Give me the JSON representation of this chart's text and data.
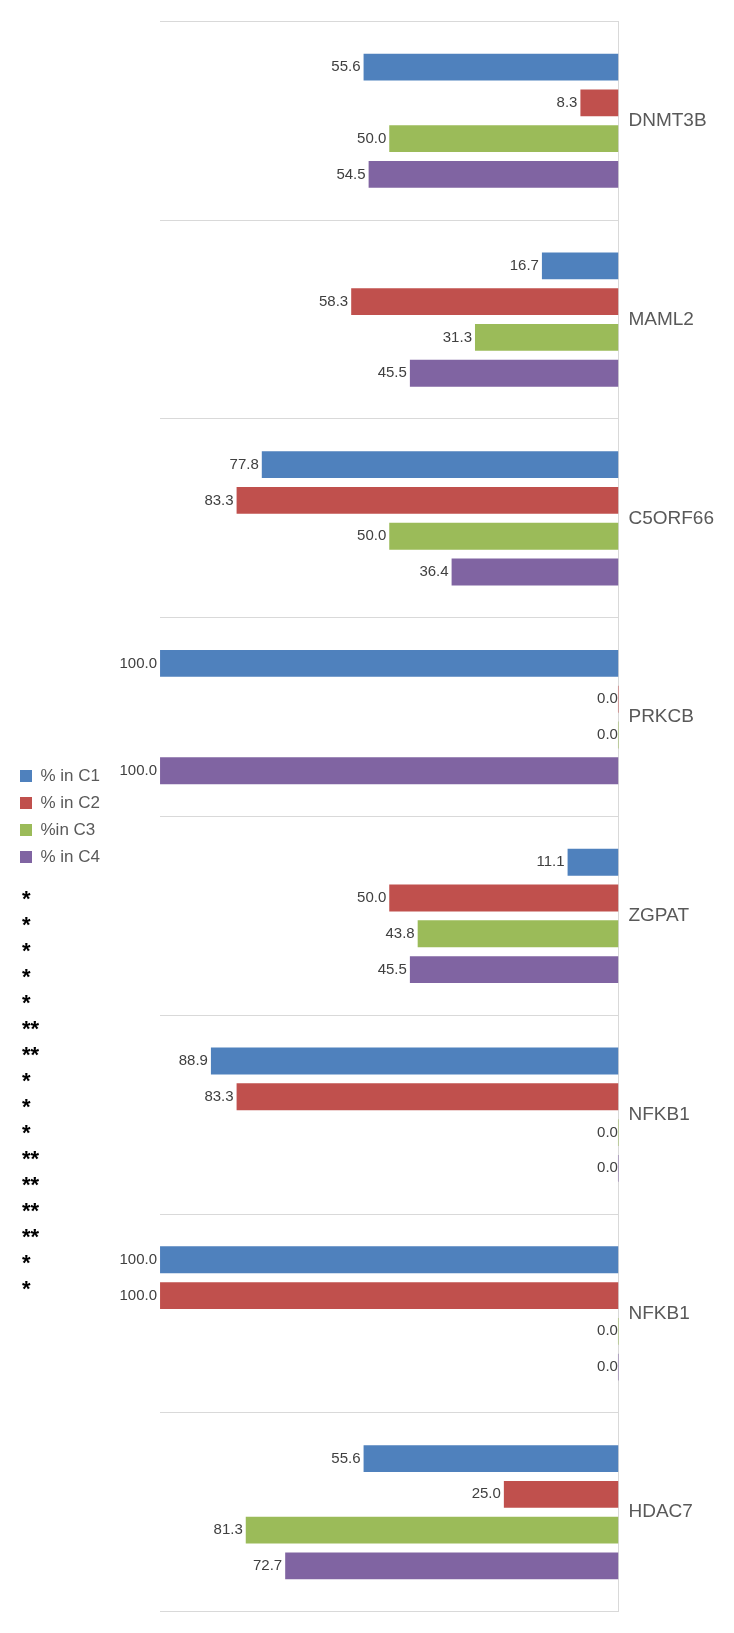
{
  "chart_data": {
    "type": "bar",
    "orientation": "horizontal",
    "categories": [
      "DNMT3B",
      "MAML2",
      "C5ORF66",
      "PRKCB",
      "ZGPAT",
      "NFKB1",
      "NFKB1",
      "HDAC7"
    ],
    "series": [
      {
        "name": "% in C1",
        "color": "#4f81bd",
        "values": [
          55.6,
          16.7,
          77.8,
          100,
          11.1,
          88.9,
          100,
          55.6
        ],
        "value_labels": [
          "55.6",
          "16.7",
          "77.8",
          "100.0",
          "11.1",
          "88.9",
          "100.0",
          "55.6"
        ]
      },
      {
        "name": "% in C2",
        "color": "#c0504d",
        "values": [
          8.3,
          58.3,
          83.3,
          0,
          50.0,
          83.3,
          100,
          25.0
        ],
        "value_labels": [
          "8.3",
          "58.3",
          "83.3",
          "0.0",
          "50.0",
          "83.3",
          "100.0",
          "25.0"
        ]
      },
      {
        "name": "%in C3",
        "color": "#9bbb59",
        "values": [
          50.0,
          31.3,
          50.0,
          0,
          43.8,
          0,
          0,
          81.3
        ],
        "value_labels": [
          "50.0",
          "31.3",
          "50.0",
          "0.0",
          "43.8",
          "0.0",
          "0.0",
          "81.3"
        ]
      },
      {
        "name": "% in C4",
        "color": "#8064a2",
        "values": [
          54.5,
          45.5,
          36.4,
          100,
          45.5,
          0,
          0,
          72.7
        ],
        "value_labels": [
          "54.5",
          "45.5",
          "36.4",
          "100.0",
          "45.5",
          "0.0",
          "0.0",
          "72.7"
        ]
      }
    ],
    "legend": "left",
    "grid": "y",
    "annotations": [
      "*",
      "*",
      "*",
      "*",
      "*",
      "**",
      "**",
      "*",
      "*",
      "*",
      "**",
      "**",
      "**",
      "**",
      "*",
      "*"
    ]
  }
}
